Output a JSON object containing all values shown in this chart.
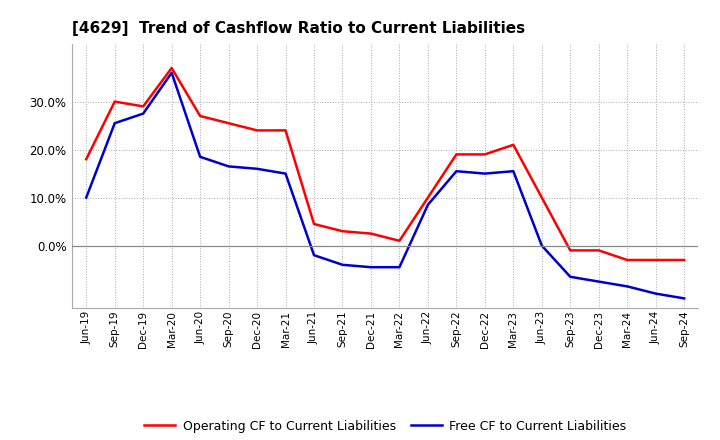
{
  "title": "[4629]  Trend of Cashflow Ratio to Current Liabilities",
  "x_labels": [
    "Jun-19",
    "Sep-19",
    "Dec-19",
    "Mar-20",
    "Jun-20",
    "Sep-20",
    "Dec-20",
    "Mar-21",
    "Jun-21",
    "Sep-21",
    "Dec-21",
    "Mar-22",
    "Jun-22",
    "Sep-22",
    "Dec-22",
    "Mar-23",
    "Jun-23",
    "Sep-23",
    "Dec-23",
    "Mar-24",
    "Jun-24",
    "Sep-24"
  ],
  "operating_cf": [
    0.18,
    0.3,
    0.29,
    0.37,
    0.27,
    0.255,
    0.24,
    0.24,
    0.045,
    0.03,
    0.025,
    0.01,
    0.1,
    0.19,
    0.19,
    0.21,
    0.1,
    -0.01,
    -0.01,
    -0.03,
    -0.03,
    -0.03
  ],
  "free_cf": [
    0.1,
    0.255,
    0.275,
    0.36,
    0.185,
    0.165,
    0.16,
    0.15,
    -0.02,
    -0.04,
    -0.045,
    -0.045,
    0.085,
    0.155,
    0.15,
    0.155,
    0.0,
    -0.065,
    -0.075,
    -0.085,
    -0.1,
    -0.11
  ],
  "operating_color": "#FF0000",
  "free_color": "#0000CC",
  "background_color": "#FFFFFF",
  "plot_bg_color": "#FFFFFF",
  "grid_color": "#AAAAAA",
  "ylim": [
    -0.13,
    0.42
  ],
  "yticks": [
    0.0,
    0.1,
    0.2,
    0.3
  ],
  "legend_labels": [
    "Operating CF to Current Liabilities",
    "Free CF to Current Liabilities"
  ]
}
